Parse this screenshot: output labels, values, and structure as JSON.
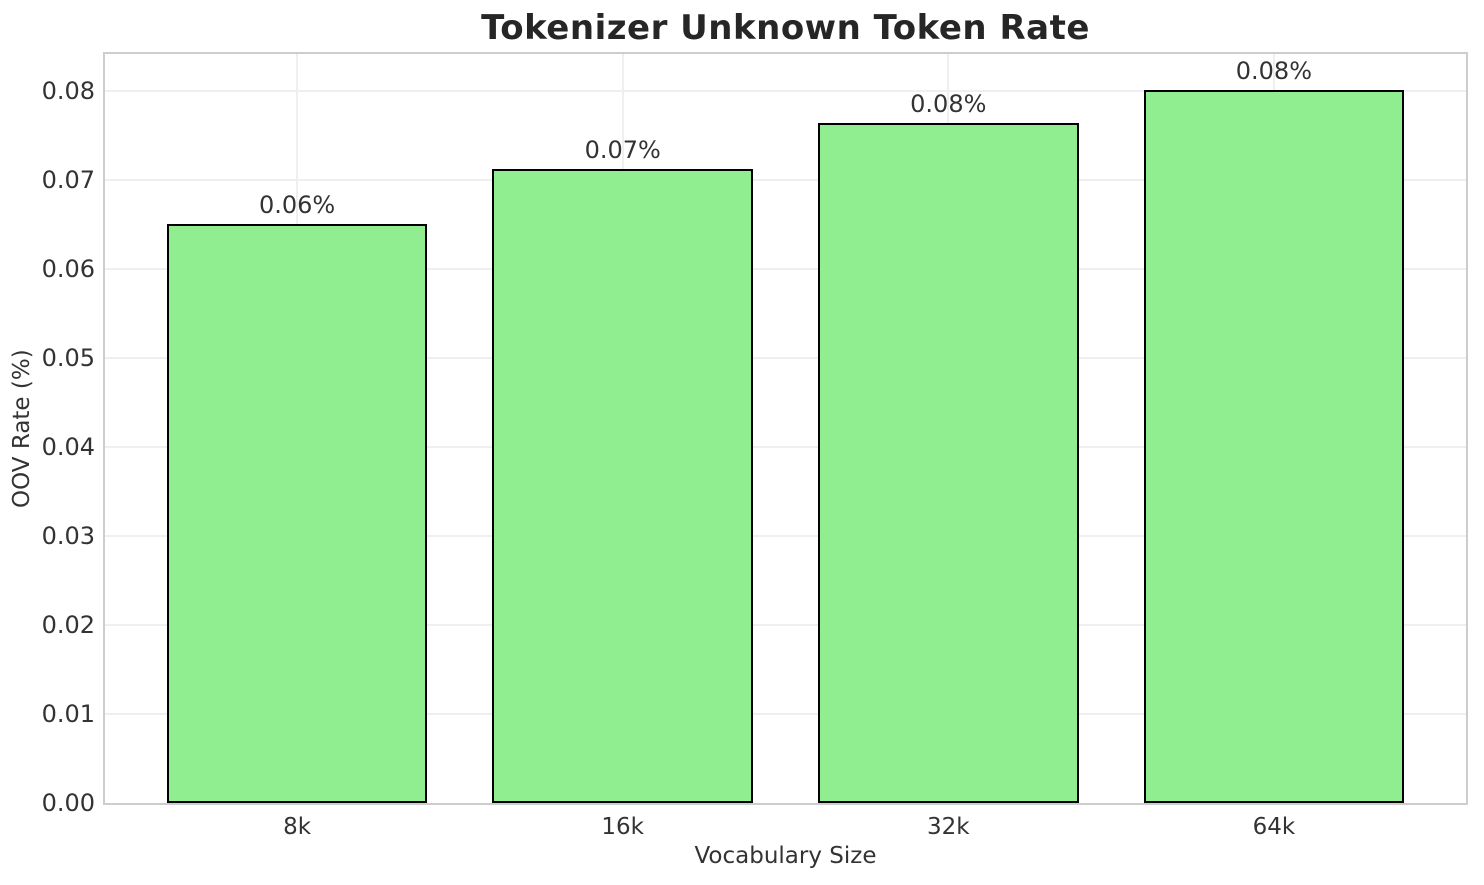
{
  "chart_data": {
    "type": "bar",
    "title": "Tokenizer Unknown Token Rate",
    "xlabel": "Vocabulary Size",
    "ylabel": "OOV Rate (%)",
    "categories": [
      "8k",
      "16k",
      "32k",
      "64k"
    ],
    "values": [
      0.065,
      0.0712,
      0.0763,
      0.0801
    ],
    "bar_labels": [
      "0.06%",
      "0.07%",
      "0.08%",
      "0.08%"
    ],
    "ylim": [
      0,
      0.0841
    ],
    "yticks": [
      0.0,
      0.01,
      0.02,
      0.03,
      0.04,
      0.05,
      0.06,
      0.07,
      0.08
    ],
    "ytick_labels": [
      "0.00",
      "0.01",
      "0.02",
      "0.03",
      "0.04",
      "0.05",
      "0.06",
      "0.07",
      "0.08"
    ],
    "grid": true,
    "legend": null,
    "bar_color": "#90EE90",
    "bar_edge_color": "#000000"
  },
  "colors": {
    "background": "#ffffff",
    "grid": "#efefef",
    "spine": "#cdcdcd",
    "text": "#333333",
    "title_text": "#262626"
  }
}
